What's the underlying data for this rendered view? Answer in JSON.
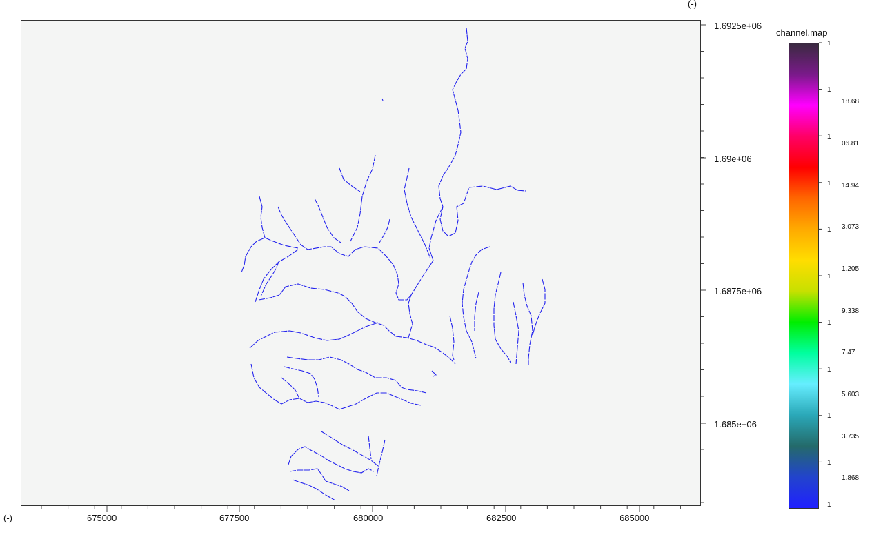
{
  "map": {
    "unit_top_right": "(-)",
    "unit_bottom_left": "(-)",
    "background_color": "#f4f5f4",
    "stream_color": "#2222ee",
    "x_ticks": [
      "675000",
      "677500",
      "680000",
      "682500",
      "685000"
    ],
    "y_ticks": [
      "1.6925e+06",
      "1.69e+06",
      "1.6875e+06",
      "1.685e+06"
    ]
  },
  "legend": {
    "title": "channel.map",
    "tick_values": [
      "1",
      "1",
      "1",
      "1",
      "1",
      "1",
      "1",
      "1",
      "1",
      "1",
      "1",
      "1"
    ],
    "partial_labels": [
      "18.68",
      "06.81",
      "14.94",
      "3.073",
      "1.205",
      "9.338",
      "7.47",
      "5.603",
      "3.735",
      "1.868"
    ],
    "colors": [
      "#3a2a40",
      "#7a1a8a",
      "#ff00ff",
      "#ff0066",
      "#ff0000",
      "#ff6600",
      "#ffaa00",
      "#ffdd00",
      "#c8e000",
      "#00ee00",
      "#00ffa0",
      "#66eeff",
      "#2aa8b8",
      "#246a6a",
      "#2244cc",
      "#2020ff"
    ]
  }
}
